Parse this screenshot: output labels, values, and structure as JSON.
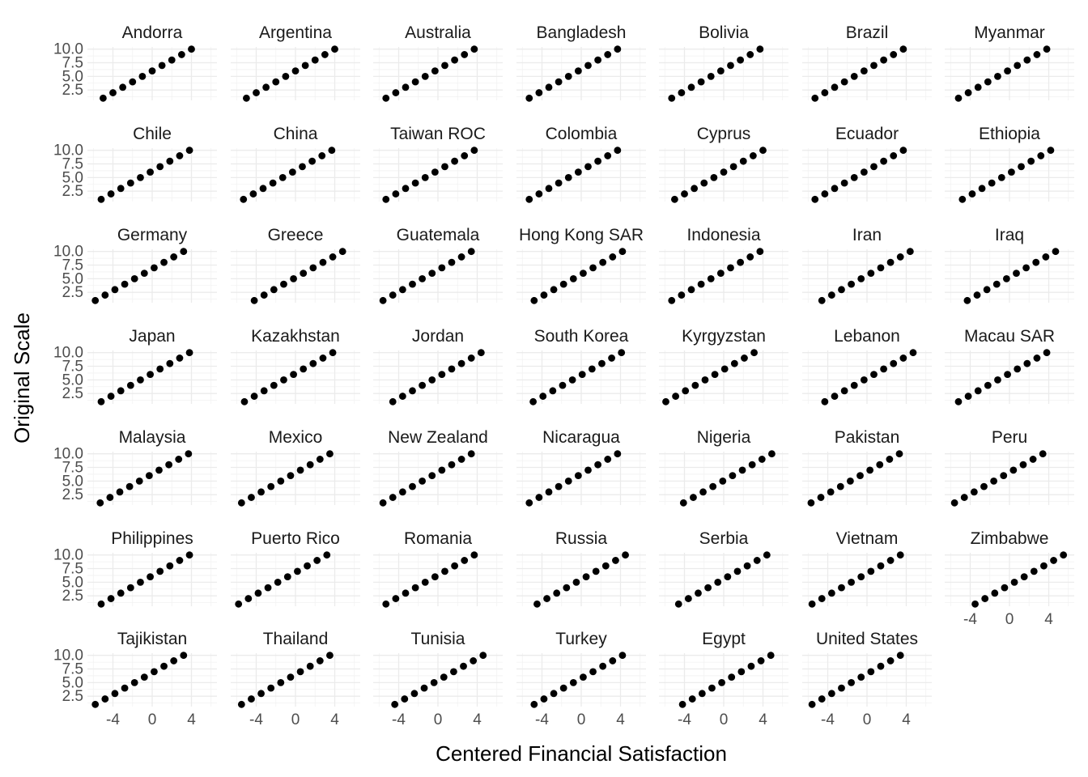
{
  "chart_data": {
    "type": "scatter",
    "xlabel": "Centered Financial Satisfaction",
    "ylabel": "Original Scale",
    "x_ticks": [
      "-4",
      "0",
      "4"
    ],
    "y_ticks": [
      "2.5",
      "5.0",
      "7.5",
      "10.0"
    ],
    "xlim": [
      -6.6,
      6.6
    ],
    "ylim": [
      0.6,
      10.4
    ],
    "grid": true,
    "y_values": [
      1,
      2,
      3,
      4,
      5,
      6,
      7,
      8,
      9,
      10
    ],
    "panels": [
      {
        "name": "Andorra",
        "mean": 6.0
      },
      {
        "name": "Argentina",
        "mean": 6.0
      },
      {
        "name": "Australia",
        "mean": 6.3
      },
      {
        "name": "Bangladesh",
        "mean": 6.3
      },
      {
        "name": "Bolivia",
        "mean": 6.3
      },
      {
        "name": "Brazil",
        "mean": 6.3
      },
      {
        "name": "Myanmar",
        "mean": 6.2
      },
      {
        "name": "Chile",
        "mean": 6.2
      },
      {
        "name": "China",
        "mean": 6.3
      },
      {
        "name": "Taiwan ROC",
        "mean": 6.3
      },
      {
        "name": "Colombia",
        "mean": 6.3
      },
      {
        "name": "Cyprus",
        "mean": 6.0
      },
      {
        "name": "Ecuador",
        "mean": 6.3
      },
      {
        "name": "Ethiopia",
        "mean": 5.8
      },
      {
        "name": "Germany",
        "mean": 6.8
      },
      {
        "name": "Greece",
        "mean": 5.2
      },
      {
        "name": "Guatemala",
        "mean": 6.6
      },
      {
        "name": "Hong Kong SAR",
        "mean": 5.8
      },
      {
        "name": "Indonesia",
        "mean": 6.3
      },
      {
        "name": "Iran",
        "mean": 5.6
      },
      {
        "name": "Iraq",
        "mean": 5.3
      },
      {
        "name": "Japan",
        "mean": 6.2
      },
      {
        "name": "Kazakhstan",
        "mean": 6.2
      },
      {
        "name": "Jordan",
        "mean": 5.6
      },
      {
        "name": "South Korea",
        "mean": 5.9
      },
      {
        "name": "Kyrgyzstan",
        "mean": 6.9
      },
      {
        "name": "Lebanon",
        "mean": 5.3
      },
      {
        "name": "Macau SAR",
        "mean": 6.2
      },
      {
        "name": "Malaysia",
        "mean": 6.3
      },
      {
        "name": "Mexico",
        "mean": 6.5
      },
      {
        "name": "New Zealand",
        "mean": 6.6
      },
      {
        "name": "Nicaragua",
        "mean": 6.3
      },
      {
        "name": "Nigeria",
        "mean": 5.1
      },
      {
        "name": "Pakistan",
        "mean": 6.7
      },
      {
        "name": "Peru",
        "mean": 6.6
      },
      {
        "name": "Philippines",
        "mean": 6.2
      },
      {
        "name": "Puerto Rico",
        "mean": 6.8
      },
      {
        "name": "Romania",
        "mean": 6.3
      },
      {
        "name": "Russia",
        "mean": 5.5
      },
      {
        "name": "Serbia",
        "mean": 5.6
      },
      {
        "name": "Vietnam",
        "mean": 6.6
      },
      {
        "name": "Zimbabwe",
        "mean": 4.5
      },
      {
        "name": "Tajikistan",
        "mean": 6.8
      },
      {
        "name": "Thailand",
        "mean": 6.5
      },
      {
        "name": "Tunisia",
        "mean": 5.4
      },
      {
        "name": "Turkey",
        "mean": 5.8
      },
      {
        "name": "Egypt",
        "mean": 5.2
      },
      {
        "name": "United States",
        "mean": 6.6
      }
    ]
  }
}
